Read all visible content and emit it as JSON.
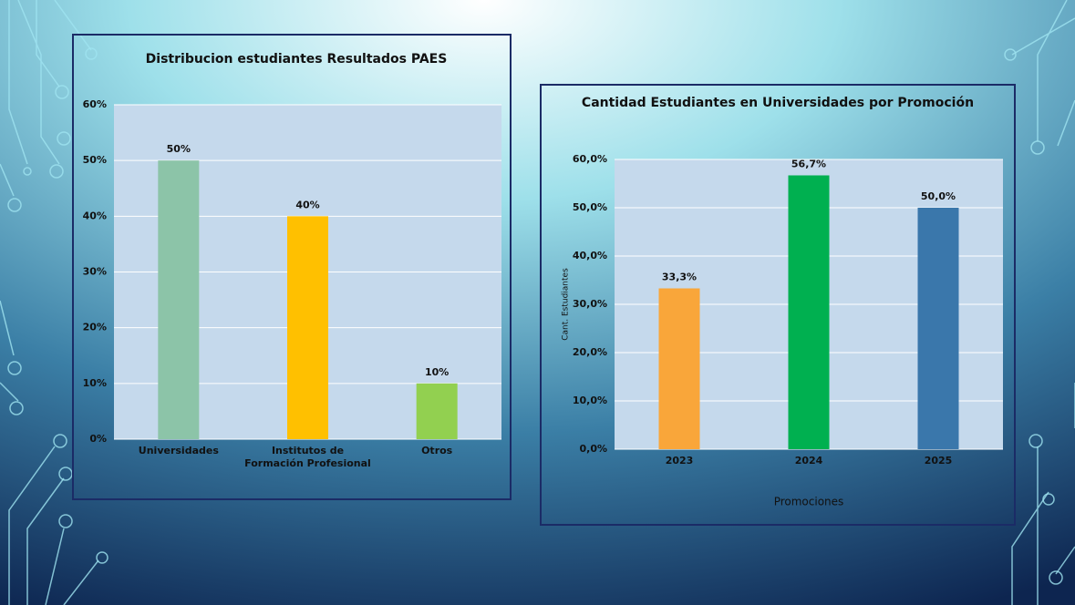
{
  "chart_data": [
    {
      "type": "bar",
      "title": "Distribucion estudiantes Resultados PAES",
      "categories": [
        "Universidades",
        "Institutos de Formación Profesional",
        "Otros"
      ],
      "values": [
        50,
        40,
        10
      ],
      "value_labels": [
        "50%",
        "40%",
        "10%"
      ],
      "colors": [
        "#8cc4a8",
        "#ffc000",
        "#92d050"
      ],
      "ylim": [
        0,
        60
      ],
      "yticks": [
        {
          "value": 0,
          "label": "0%"
        },
        {
          "value": 10,
          "label": "10%"
        },
        {
          "value": 20,
          "label": "20%"
        },
        {
          "value": 30,
          "label": "30%"
        },
        {
          "value": 40,
          "label": "40%"
        },
        {
          "value": 50,
          "label": "50%"
        },
        {
          "value": 60,
          "label": "60%"
        }
      ],
      "grid": true
    },
    {
      "type": "bar",
      "title": "Cantidad Estudiantes en Universidades por Promoción",
      "x_label": "Promociones",
      "y_label": "Cant. Estudiantes",
      "categories": [
        "2023",
        "2024",
        "2025"
      ],
      "values": [
        33.3,
        56.7,
        50.0
      ],
      "value_labels": [
        "33,3%",
        "56,7%",
        "50,0%"
      ],
      "colors": [
        "#f9a63a",
        "#00b050",
        "#3a77ab"
      ],
      "ylim": [
        0,
        60
      ],
      "yticks": [
        {
          "value": 0,
          "label": "0,0%"
        },
        {
          "value": 10,
          "label": "10,0%"
        },
        {
          "value": 20,
          "label": "20,0%"
        },
        {
          "value": 30,
          "label": "30,0%"
        },
        {
          "value": 40,
          "label": "40,0%"
        },
        {
          "value": 50,
          "label": "50,0%"
        },
        {
          "value": 60,
          "label": "60,0%"
        }
      ],
      "grid": true
    }
  ]
}
